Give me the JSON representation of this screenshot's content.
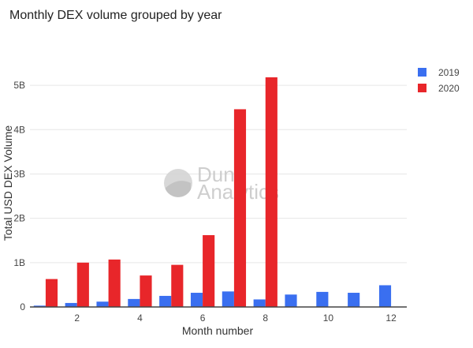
{
  "title": "Monthly DEX volume grouped by year",
  "chart_data": {
    "type": "bar",
    "title": "Monthly DEX volume grouped by year",
    "xlabel": "Month number",
    "ylabel": "Total USD DEX Volume",
    "categories": [
      1,
      2,
      3,
      4,
      5,
      6,
      7,
      8,
      9,
      10,
      11,
      12
    ],
    "series": [
      {
        "name": "2019",
        "color": "#3a6ff0",
        "values": [
          0.03,
          0.09,
          0.12,
          0.18,
          0.25,
          0.32,
          0.35,
          0.17,
          0.28,
          0.34,
          0.32,
          0.49
        ]
      },
      {
        "name": "2020",
        "color": "#e8262a",
        "values": [
          0.63,
          1.0,
          1.07,
          0.71,
          0.95,
          1.62,
          4.46,
          5.18,
          null,
          null,
          null,
          null
        ]
      }
    ],
    "xticks": [
      2,
      4,
      6,
      8,
      10,
      12
    ],
    "yticks": [
      0,
      1,
      2,
      3,
      4,
      5
    ],
    "ytick_labels": [
      "0",
      "1B",
      "2B",
      "3B",
      "4B",
      "5B"
    ],
    "ylim": [
      0,
      5.5
    ],
    "xlim": [
      0.5,
      12.5
    ],
    "grid": true,
    "legend_position": "right"
  },
  "watermark": {
    "line1": "Dune",
    "line2": "Analytics",
    "icon": "dune-logo-icon"
  }
}
